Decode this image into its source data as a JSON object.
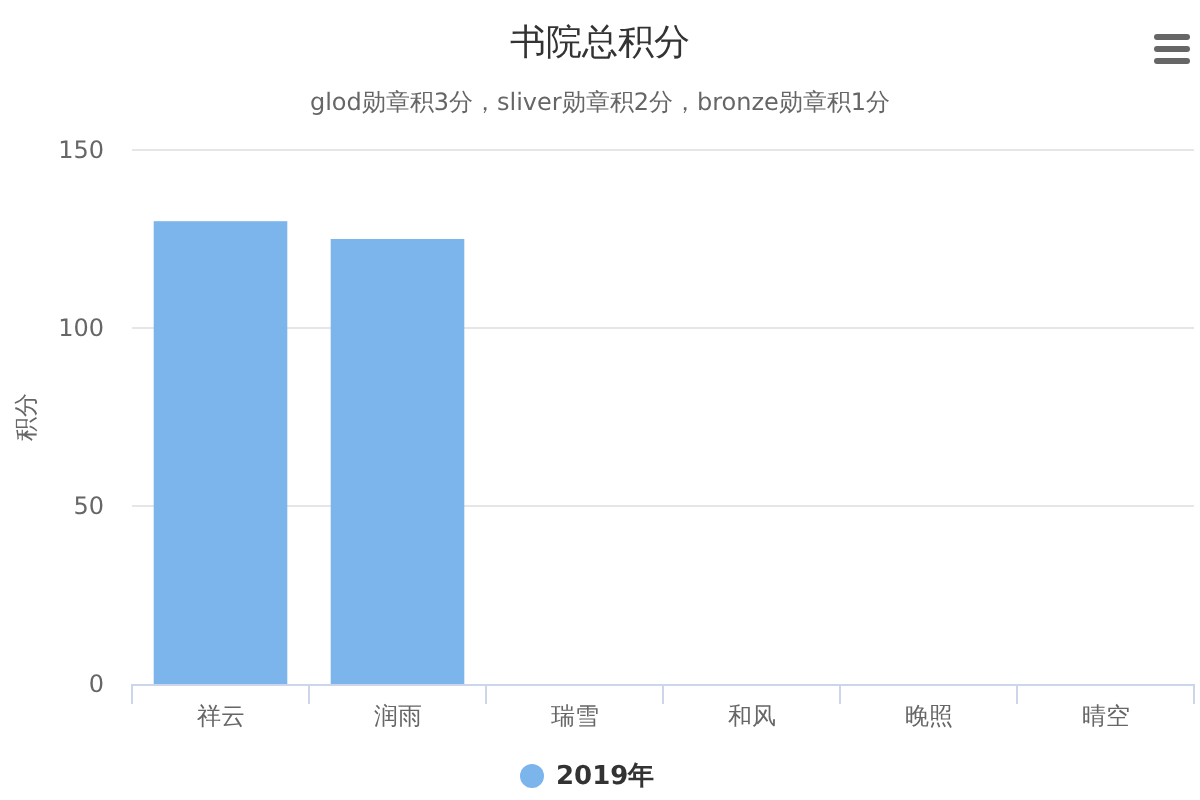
{
  "chart_data": {
    "type": "bar",
    "title": "书院总积分",
    "subtitle": "glod勋章积3分，sliver勋章积2分，bronze勋章积1分",
    "ylabel": "积分",
    "categories": [
      "祥云",
      "润雨",
      "瑞雪",
      "和风",
      "晚照",
      "晴空"
    ],
    "series": [
      {
        "name": "2019年",
        "color": "#7cb5ec",
        "values": [
          130,
          125,
          0,
          0,
          0,
          0
        ]
      }
    ],
    "ylim": [
      0,
      150
    ],
    "yticks": [
      0,
      50,
      100,
      150
    ],
    "grid": "y",
    "legend": "bottom"
  }
}
